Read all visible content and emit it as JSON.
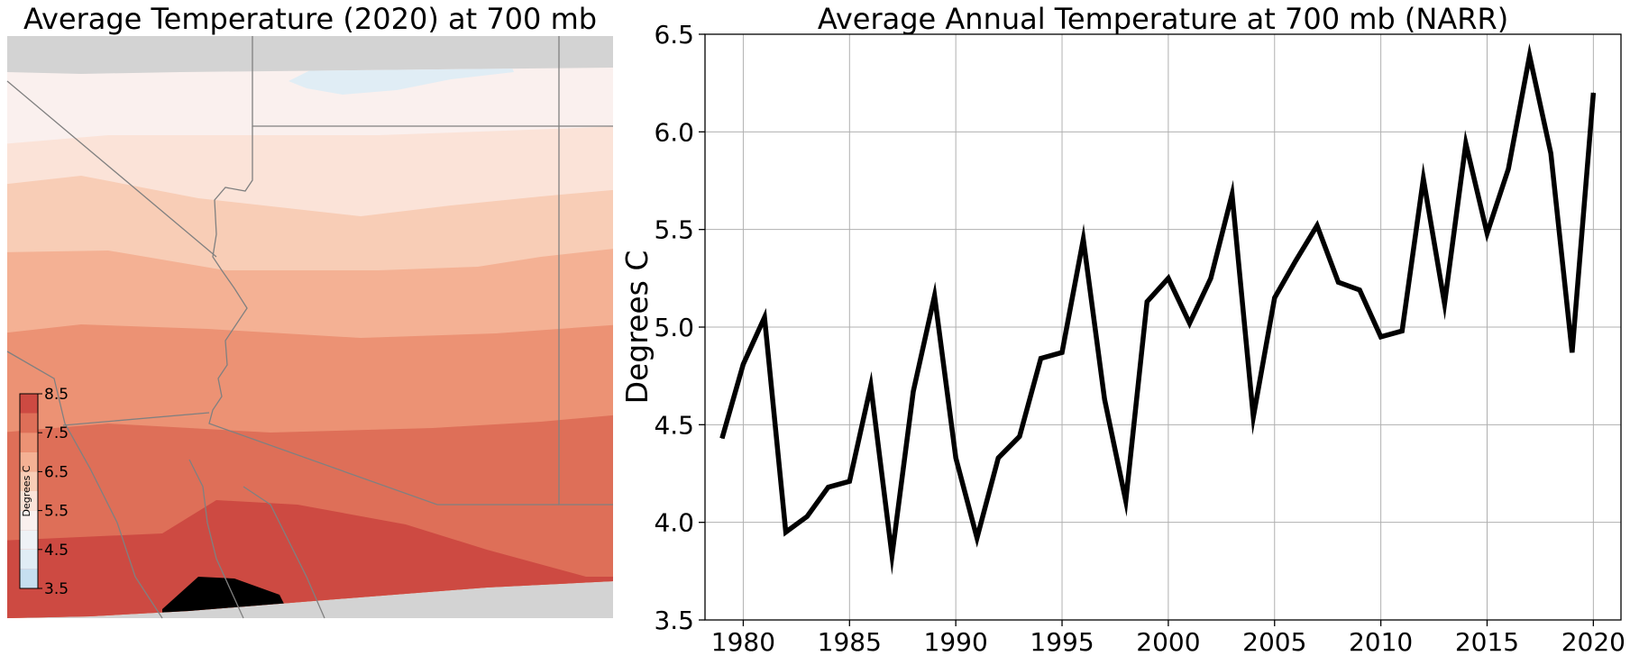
{
  "map": {
    "title": "Average Temperature (2020) at 700 mb",
    "colorbar": {
      "label": "Degrees C",
      "ticks": [
        "3.5",
        "4.5",
        "5.5",
        "6.5",
        "7.5",
        "8.5"
      ],
      "levels": [
        3.5,
        4.0,
        4.5,
        5.0,
        5.5,
        6.0,
        6.5,
        7.0,
        7.5,
        8.0,
        8.5
      ],
      "colors": [
        "#c6dff0",
        "#e0edf5",
        "#eef2f6",
        "#faf0ee",
        "#fbe3d8",
        "#f8cdb6",
        "#f4b194",
        "#ec9274",
        "#de6f58",
        "#cd4a42"
      ]
    },
    "background_color": "#d3d3d3",
    "border_color": "#808080"
  },
  "chart_data": {
    "type": "line",
    "title": "Average Annual Temperature at 700 mb (NARR)",
    "xlabel": "",
    "ylabel": "Degrees C",
    "xlim": [
      1978.2,
      2021.3
    ],
    "ylim": [
      3.5,
      6.5
    ],
    "grid": true,
    "x_ticks": [
      1980,
      1985,
      1990,
      1995,
      2000,
      2005,
      2010,
      2015,
      2020
    ],
    "y_ticks": [
      3.5,
      4.0,
      4.5,
      5.0,
      5.5,
      6.0,
      6.5
    ],
    "y_tick_labels": [
      "3.5",
      "4.0",
      "4.5",
      "5.0",
      "5.5",
      "6.0",
      "6.5"
    ],
    "series": [
      {
        "color": "#000000",
        "x": [
          1979,
          1980,
          1981,
          1982,
          1983,
          1984,
          1985,
          1986,
          1987,
          1988,
          1989,
          1990,
          1991,
          1992,
          1993,
          1994,
          1995,
          1996,
          1997,
          1998,
          1999,
          2000,
          2001,
          2002,
          2003,
          2004,
          2005,
          2006,
          2007,
          2008,
          2009,
          2010,
          2011,
          2012,
          2013,
          2014,
          2015,
          2016,
          2017,
          2018,
          2019,
          2020
        ],
        "y": [
          4.43,
          4.81,
          5.05,
          3.95,
          4.03,
          4.18,
          4.21,
          4.7,
          3.83,
          4.67,
          5.16,
          4.33,
          3.92,
          4.33,
          4.44,
          4.84,
          4.87,
          5.45,
          4.63,
          4.11,
          5.13,
          5.25,
          5.02,
          5.25,
          5.68,
          4.54,
          5.15,
          5.34,
          5.52,
          5.23,
          5.19,
          4.95,
          4.98,
          5.76,
          5.12,
          5.94,
          5.48,
          5.81,
          6.39,
          5.89,
          4.87,
          6.2
        ]
      }
    ]
  }
}
